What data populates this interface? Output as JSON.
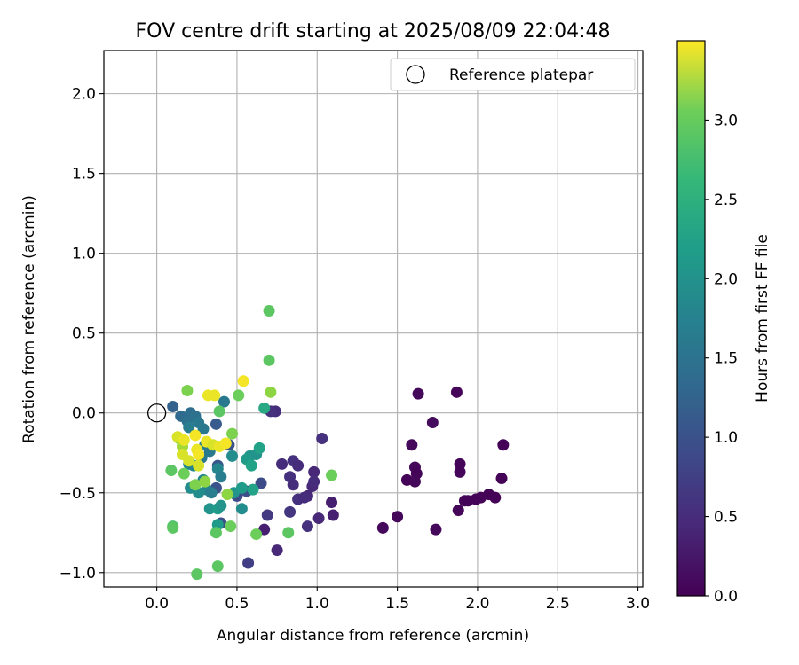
{
  "chart_data": {
    "type": "scatter",
    "title": "FOV centre drift starting at 2025/08/09 22:04:48",
    "xlabel": "Angular distance from reference (arcmin)",
    "ylabel": "Rotation from reference (arcmin)",
    "xlim": [
      -0.33,
      3.03
    ],
    "ylim": [
      -1.09,
      2.27
    ],
    "xticks": [
      0.0,
      0.5,
      1.0,
      1.5,
      2.0,
      2.5,
      3.0
    ],
    "xtick_labels": [
      "0.0",
      "0.5",
      "1.0",
      "1.5",
      "2.0",
      "2.5",
      "3.0"
    ],
    "yticks": [
      -1.0,
      -0.5,
      0.0,
      0.5,
      1.0,
      1.5,
      2.0
    ],
    "ytick_labels": [
      "−1.0",
      "−0.5",
      "0.0",
      "0.5",
      "1.0",
      "1.5",
      "2.0"
    ],
    "grid": true,
    "legend": {
      "placement": "top-right",
      "entries": [
        "Reference platepar"
      ]
    },
    "reference_point": {
      "x": 0.0,
      "y": 0.0
    },
    "colorbar": {
      "label": "Hours from first FF file",
      "colormap": "viridis",
      "range": [
        0.0,
        3.5
      ],
      "ticks": [
        0.0,
        0.5,
        1.0,
        1.5,
        2.0,
        2.5,
        3.0
      ],
      "tick_labels": [
        "0.0",
        "0.5",
        "1.0",
        "1.5",
        "2.0",
        "2.5",
        "3.0"
      ]
    },
    "points": [
      {
        "x": 1.87,
        "y": 0.13,
        "h": 0.05
      },
      {
        "x": 1.63,
        "y": 0.12,
        "h": 0.08
      },
      {
        "x": 1.72,
        "y": -0.06,
        "h": 0.1
      },
      {
        "x": 1.59,
        "y": -0.2,
        "h": 0.07
      },
      {
        "x": 2.16,
        "y": -0.2,
        "h": 0.02
      },
      {
        "x": 1.89,
        "y": -0.32,
        "h": 0.05
      },
      {
        "x": 1.61,
        "y": -0.34,
        "h": 0.06
      },
      {
        "x": 1.62,
        "y": -0.38,
        "h": 0.04
      },
      {
        "x": 1.89,
        "y": -0.37,
        "h": 0.05
      },
      {
        "x": 1.56,
        "y": -0.42,
        "h": 0.03
      },
      {
        "x": 1.61,
        "y": -0.43,
        "h": 0.06
      },
      {
        "x": 2.15,
        "y": -0.41,
        "h": 0.02
      },
      {
        "x": 2.07,
        "y": -0.51,
        "h": 0.02
      },
      {
        "x": 2.11,
        "y": -0.53,
        "h": 0.02
      },
      {
        "x": 2.02,
        "y": -0.53,
        "h": 0.03
      },
      {
        "x": 1.99,
        "y": -0.54,
        "h": 0.03
      },
      {
        "x": 1.92,
        "y": -0.55,
        "h": 0.04
      },
      {
        "x": 1.94,
        "y": -0.55,
        "h": 0.04
      },
      {
        "x": 1.88,
        "y": -0.61,
        "h": 0.05
      },
      {
        "x": 1.5,
        "y": -0.65,
        "h": 0.06
      },
      {
        "x": 1.41,
        "y": -0.72,
        "h": 0.08
      },
      {
        "x": 1.74,
        "y": -0.73,
        "h": 0.07
      },
      {
        "x": 1.03,
        "y": -0.16,
        "h": 0.5
      },
      {
        "x": 0.98,
        "y": -0.37,
        "h": 0.4
      },
      {
        "x": 0.74,
        "y": 0.01,
        "h": 0.45
      },
      {
        "x": 0.71,
        "y": 0.01,
        "h": 0.5
      },
      {
        "x": 0.78,
        "y": -0.32,
        "h": 0.45
      },
      {
        "x": 0.85,
        "y": -0.3,
        "h": 0.5
      },
      {
        "x": 0.88,
        "y": -0.33,
        "h": 0.45
      },
      {
        "x": 0.83,
        "y": -0.4,
        "h": 0.5
      },
      {
        "x": 0.85,
        "y": -0.45,
        "h": 0.45
      },
      {
        "x": 0.97,
        "y": -0.46,
        "h": 0.4
      },
      {
        "x": 0.98,
        "y": -0.43,
        "h": 0.45
      },
      {
        "x": 0.94,
        "y": -0.52,
        "h": 0.4
      },
      {
        "x": 0.88,
        "y": -0.54,
        "h": 0.5
      },
      {
        "x": 0.92,
        "y": -0.53,
        "h": 0.45
      },
      {
        "x": 1.09,
        "y": -0.56,
        "h": 0.3
      },
      {
        "x": 1.1,
        "y": -0.64,
        "h": 0.3
      },
      {
        "x": 1.01,
        "y": -0.66,
        "h": 0.4
      },
      {
        "x": 0.83,
        "y": -0.62,
        "h": 0.55
      },
      {
        "x": 0.94,
        "y": -0.71,
        "h": 0.5
      },
      {
        "x": 0.69,
        "y": -0.64,
        "h": 0.6
      },
      {
        "x": 0.67,
        "y": -0.73,
        "h": 0.3
      },
      {
        "x": 0.75,
        "y": -0.86,
        "h": 0.4
      },
      {
        "x": 0.57,
        "y": -0.94,
        "h": 0.65
      },
      {
        "x": 0.65,
        "y": -0.44,
        "h": 0.8
      },
      {
        "x": 0.56,
        "y": -0.49,
        "h": 0.85
      },
      {
        "x": 0.5,
        "y": -0.52,
        "h": 0.8
      },
      {
        "x": 0.37,
        "y": -0.07,
        "h": 1.0
      },
      {
        "x": 0.38,
        "y": -0.33,
        "h": 0.95
      },
      {
        "x": 0.37,
        "y": -0.47,
        "h": 0.9
      },
      {
        "x": 0.4,
        "y": -0.69,
        "h": 0.85
      },
      {
        "x": 0.45,
        "y": -0.2,
        "h": 0.9
      },
      {
        "x": 0.1,
        "y": 0.04,
        "h": 1.1
      },
      {
        "x": 0.15,
        "y": -0.02,
        "h": 1.2
      },
      {
        "x": 0.19,
        "y": -0.05,
        "h": 1.3
      },
      {
        "x": 0.21,
        "y": 0.0,
        "h": 1.25
      },
      {
        "x": 0.24,
        "y": -0.02,
        "h": 1.3
      },
      {
        "x": 0.26,
        "y": -0.06,
        "h": 1.4
      },
      {
        "x": 0.2,
        "y": -0.09,
        "h": 1.5
      },
      {
        "x": 0.42,
        "y": 0.07,
        "h": 1.4
      },
      {
        "x": 0.29,
        "y": -0.1,
        "h": 1.4
      },
      {
        "x": 0.3,
        "y": -0.2,
        "h": 1.5
      },
      {
        "x": 0.33,
        "y": -0.24,
        "h": 1.4
      },
      {
        "x": 0.28,
        "y": -0.28,
        "h": 1.4
      },
      {
        "x": 0.2,
        "y": -0.32,
        "h": 1.6
      },
      {
        "x": 0.23,
        "y": -0.33,
        "h": 1.6
      },
      {
        "x": 0.38,
        "y": -0.35,
        "h": 1.6
      },
      {
        "x": 0.4,
        "y": -0.4,
        "h": 1.5
      },
      {
        "x": 0.29,
        "y": -0.42,
        "h": 1.6
      },
      {
        "x": 0.21,
        "y": -0.47,
        "h": 1.7
      },
      {
        "x": 0.31,
        "y": -0.48,
        "h": 1.6
      },
      {
        "x": 0.34,
        "y": -0.5,
        "h": 1.5
      },
      {
        "x": 0.26,
        "y": -0.5,
        "h": 1.7
      },
      {
        "x": 0.33,
        "y": -0.6,
        "h": 1.8
      },
      {
        "x": 0.38,
        "y": -0.6,
        "h": 1.9
      },
      {
        "x": 0.4,
        "y": -0.58,
        "h": 1.8
      },
      {
        "x": 0.47,
        "y": -0.27,
        "h": 1.7
      },
      {
        "x": 0.48,
        "y": -0.5,
        "h": 1.8
      },
      {
        "x": 0.53,
        "y": -0.6,
        "h": 1.7
      },
      {
        "x": 0.53,
        "y": -0.47,
        "h": 1.9
      },
      {
        "x": 0.58,
        "y": -0.27,
        "h": 1.8
      },
      {
        "x": 0.56,
        "y": -0.29,
        "h": 1.9
      },
      {
        "x": 0.62,
        "y": -0.26,
        "h": 1.8
      },
      {
        "x": 0.64,
        "y": -0.22,
        "h": 2.0
      },
      {
        "x": 0.59,
        "y": -0.33,
        "h": 2.0
      },
      {
        "x": 0.6,
        "y": -0.48,
        "h": 2.0
      },
      {
        "x": 0.67,
        "y": 0.03,
        "h": 2.1
      },
      {
        "x": 0.38,
        "y": -0.7,
        "h": 1.9
      },
      {
        "x": 0.51,
        "y": 0.11,
        "h": 2.7
      },
      {
        "x": 0.39,
        "y": 0.01,
        "h": 2.6
      },
      {
        "x": 0.7,
        "y": 0.64,
        "h": 2.6
      },
      {
        "x": 0.7,
        "y": 0.33,
        "h": 2.6
      },
      {
        "x": 0.71,
        "y": 0.13,
        "h": 2.9
      },
      {
        "x": 0.19,
        "y": 0.14,
        "h": 2.8
      },
      {
        "x": 0.47,
        "y": -0.13,
        "h": 2.8
      },
      {
        "x": 0.14,
        "y": -0.16,
        "h": 2.9
      },
      {
        "x": 0.16,
        "y": -0.21,
        "h": 3.0
      },
      {
        "x": 0.17,
        "y": -0.38,
        "h": 2.7
      },
      {
        "x": 0.09,
        "y": -0.36,
        "h": 2.6
      },
      {
        "x": 0.24,
        "y": -0.45,
        "h": 2.8
      },
      {
        "x": 0.3,
        "y": -0.43,
        "h": 2.9
      },
      {
        "x": 0.44,
        "y": -0.51,
        "h": 2.9
      },
      {
        "x": 1.09,
        "y": -0.39,
        "h": 2.7
      },
      {
        "x": 0.1,
        "y": -0.71,
        "h": 2.5
      },
      {
        "x": 0.1,
        "y": -0.72,
        "h": 2.6
      },
      {
        "x": 0.37,
        "y": -0.75,
        "h": 2.6
      },
      {
        "x": 0.46,
        "y": -0.71,
        "h": 2.7
      },
      {
        "x": 0.62,
        "y": -0.76,
        "h": 2.7
      },
      {
        "x": 0.82,
        "y": -0.75,
        "h": 2.6
      },
      {
        "x": 0.38,
        "y": -0.96,
        "h": 2.6
      },
      {
        "x": 0.25,
        "y": -1.01,
        "h": 2.6
      },
      {
        "x": 0.54,
        "y": 0.2,
        "h": 3.45
      },
      {
        "x": 0.32,
        "y": 0.11,
        "h": 3.4
      },
      {
        "x": 0.36,
        "y": 0.11,
        "h": 3.4
      },
      {
        "x": 0.13,
        "y": -0.15,
        "h": 3.3
      },
      {
        "x": 0.17,
        "y": -0.17,
        "h": 3.4
      },
      {
        "x": 0.24,
        "y": -0.14,
        "h": 3.45
      },
      {
        "x": 0.31,
        "y": -0.18,
        "h": 3.4
      },
      {
        "x": 0.35,
        "y": -0.2,
        "h": 3.3
      },
      {
        "x": 0.39,
        "y": -0.21,
        "h": 3.4
      },
      {
        "x": 0.43,
        "y": -0.19,
        "h": 3.45
      },
      {
        "x": 0.16,
        "y": -0.26,
        "h": 3.3
      },
      {
        "x": 0.25,
        "y": -0.23,
        "h": 3.4
      },
      {
        "x": 0.26,
        "y": -0.26,
        "h": 3.45
      },
      {
        "x": 0.2,
        "y": -0.3,
        "h": 3.3
      },
      {
        "x": 0.26,
        "y": -0.33,
        "h": 3.3
      }
    ]
  }
}
